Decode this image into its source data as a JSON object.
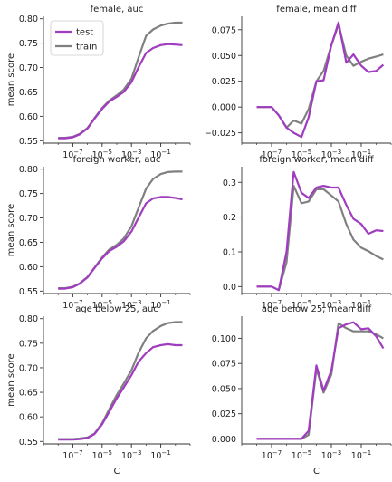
{
  "figure": {
    "xlabel": "C",
    "ylabel": "mean score",
    "x_ticks": [
      {
        "base": "10",
        "exp": "−7",
        "value": 1e-07
      },
      {
        "base": "10",
        "exp": "−5",
        "value": 1e-05
      },
      {
        "base": "10",
        "exp": "−3",
        "value": 0.001
      },
      {
        "base": "10",
        "exp": "−1",
        "value": 0.1
      }
    ],
    "x_scale": "log",
    "xlim": [
      1e-09,
      10
    ],
    "legend": {
      "placement": "top-left of first panel",
      "entries": [
        "test",
        "train"
      ]
    },
    "colors": {
      "test": "#a03cbf",
      "train": "#808080",
      "axis": "#333333"
    }
  },
  "chart_data": [
    {
      "type": "line",
      "title": "female, auc",
      "ylabel": "mean score",
      "xlabel": "",
      "ylim": [
        0.545,
        0.805
      ],
      "yticks": [
        0.55,
        0.6,
        0.65,
        0.7,
        0.75,
        0.8
      ],
      "ytick_labels": [
        "0.55",
        "0.60",
        "0.65",
        "0.70",
        "0.75",
        "0.80"
      ],
      "x": [
        1e-08,
        3e-08,
        1e-07,
        3e-07,
        1e-06,
        3e-06,
        1e-05,
        3e-05,
        0.0001,
        0.0003,
        0.001,
        0.003,
        0.01,
        0.03,
        0.1,
        0.3,
        1,
        3
      ],
      "series": [
        {
          "name": "test",
          "values": [
            0.555,
            0.555,
            0.557,
            0.563,
            0.575,
            0.595,
            0.615,
            0.63,
            0.64,
            0.65,
            0.67,
            0.7,
            0.73,
            0.74,
            0.746,
            0.748,
            0.747,
            0.746
          ]
        },
        {
          "name": "train",
          "values": [
            0.556,
            0.556,
            0.558,
            0.564,
            0.576,
            0.596,
            0.617,
            0.632,
            0.643,
            0.655,
            0.677,
            0.72,
            0.765,
            0.778,
            0.786,
            0.79,
            0.792,
            0.792
          ]
        }
      ]
    },
    {
      "type": "line",
      "title": "female, mean diff",
      "ylabel": "",
      "xlabel": "",
      "ylim": [
        -0.035,
        0.088
      ],
      "yticks": [
        -0.025,
        0.0,
        0.025,
        0.05,
        0.075
      ],
      "ytick_labels": [
        "−0.025",
        "0.000",
        "0.025",
        "0.050",
        "0.075"
      ],
      "x": [
        1e-08,
        3e-08,
        1e-07,
        3e-07,
        1e-06,
        3e-06,
        1e-05,
        3e-05,
        0.0001,
        0.0003,
        0.001,
        0.003,
        0.01,
        0.03,
        0.1,
        0.3,
        1,
        3
      ],
      "series": [
        {
          "name": "test",
          "values": [
            0.0,
            0.0,
            0.0,
            -0.008,
            -0.02,
            -0.025,
            -0.029,
            -0.01,
            0.025,
            0.026,
            0.06,
            0.082,
            0.043,
            0.051,
            0.04,
            0.034,
            0.035,
            0.041
          ]
        },
        {
          "name": "train",
          "values": [
            0.0,
            0.0,
            0.0,
            -0.008,
            -0.02,
            -0.013,
            -0.016,
            -0.002,
            0.025,
            0.035,
            0.06,
            0.08,
            0.05,
            0.04,
            0.044,
            0.047,
            0.049,
            0.051
          ]
        }
      ]
    },
    {
      "type": "line",
      "title": "foreign worker, auc",
      "ylabel": "mean score",
      "xlabel": "",
      "ylim": [
        0.545,
        0.805
      ],
      "yticks": [
        0.55,
        0.6,
        0.65,
        0.7,
        0.75,
        0.8
      ],
      "ytick_labels": [
        "0.55",
        "0.60",
        "0.65",
        "0.70",
        "0.75",
        "0.80"
      ],
      "x": [
        1e-08,
        3e-08,
        1e-07,
        3e-07,
        1e-06,
        3e-06,
        1e-05,
        3e-05,
        0.0001,
        0.0003,
        0.001,
        0.003,
        0.01,
        0.03,
        0.1,
        0.3,
        1,
        3
      ],
      "series": [
        {
          "name": "test",
          "values": [
            0.555,
            0.555,
            0.558,
            0.565,
            0.578,
            0.597,
            0.617,
            0.632,
            0.641,
            0.652,
            0.672,
            0.7,
            0.73,
            0.74,
            0.743,
            0.743,
            0.741,
            0.738
          ]
        },
        {
          "name": "train",
          "values": [
            0.556,
            0.556,
            0.559,
            0.566,
            0.579,
            0.598,
            0.619,
            0.635,
            0.645,
            0.658,
            0.683,
            0.72,
            0.76,
            0.78,
            0.79,
            0.794,
            0.795,
            0.795
          ]
        }
      ]
    },
    {
      "type": "line",
      "title": "foreign worker, mean diff",
      "ylabel": "",
      "xlabel": "",
      "ylim": [
        -0.02,
        0.345
      ],
      "yticks": [
        0.0,
        0.1,
        0.2,
        0.3
      ],
      "ytick_labels": [
        "0.0",
        "0.1",
        "0.2",
        "0.3"
      ],
      "x": [
        1e-08,
        3e-08,
        1e-07,
        3e-07,
        1e-06,
        3e-06,
        1e-05,
        3e-05,
        0.0001,
        0.0003,
        0.001,
        0.003,
        0.01,
        0.03,
        0.1,
        0.3,
        1,
        3
      ],
      "series": [
        {
          "name": "test",
          "values": [
            0.0,
            0.0,
            0.0,
            -0.01,
            0.1,
            0.33,
            0.27,
            0.255,
            0.285,
            0.29,
            0.285,
            0.285,
            0.235,
            0.195,
            0.18,
            0.152,
            0.162,
            0.16
          ]
        },
        {
          "name": "train",
          "values": [
            0.0,
            0.0,
            0.0,
            -0.01,
            0.07,
            0.29,
            0.24,
            0.245,
            0.28,
            0.28,
            0.262,
            0.245,
            0.18,
            0.135,
            0.112,
            0.102,
            0.088,
            0.078
          ]
        }
      ]
    },
    {
      "type": "line",
      "title": "age below 25, auc",
      "ylabel": "mean score",
      "xlabel": "C",
      "ylim": [
        0.545,
        0.805
      ],
      "yticks": [
        0.55,
        0.6,
        0.65,
        0.7,
        0.75,
        0.8
      ],
      "ytick_labels": [
        "0.55",
        "0.60",
        "0.65",
        "0.70",
        "0.75",
        "0.80"
      ],
      "x": [
        1e-08,
        3e-08,
        1e-07,
        3e-07,
        1e-06,
        3e-06,
        1e-05,
        3e-05,
        0.0001,
        0.0003,
        0.001,
        0.003,
        0.01,
        0.03,
        0.1,
        0.3,
        1,
        3
      ],
      "series": [
        {
          "name": "test",
          "values": [
            0.554,
            0.554,
            0.554,
            0.555,
            0.557,
            0.565,
            0.585,
            0.61,
            0.638,
            0.66,
            0.685,
            0.712,
            0.73,
            0.742,
            0.746,
            0.748,
            0.746,
            0.746
          ]
        },
        {
          "name": "train",
          "values": [
            0.555,
            0.555,
            0.555,
            0.556,
            0.558,
            0.566,
            0.587,
            0.615,
            0.645,
            0.668,
            0.695,
            0.73,
            0.76,
            0.775,
            0.785,
            0.791,
            0.793,
            0.793
          ]
        }
      ]
    },
    {
      "type": "line",
      "title": "age below 25, mean diff",
      "ylabel": "",
      "xlabel": "C",
      "ylim": [
        -0.005,
        0.122
      ],
      "yticks": [
        0.0,
        0.025,
        0.05,
        0.075,
        0.1
      ],
      "ytick_labels": [
        "0.000",
        "0.025",
        "0.050",
        "0.075",
        "0.100"
      ],
      "x": [
        1e-08,
        3e-08,
        1e-07,
        3e-07,
        1e-06,
        3e-06,
        1e-05,
        3e-05,
        0.0001,
        0.0003,
        0.001,
        0.003,
        0.01,
        0.03,
        0.1,
        0.3,
        1,
        3
      ],
      "series": [
        {
          "name": "test",
          "values": [
            0.0,
            0.0,
            0.0,
            0.0,
            0.0,
            0.0,
            0.0,
            0.008,
            0.073,
            0.048,
            0.068,
            0.11,
            0.114,
            0.116,
            0.109,
            0.11,
            0.102,
            0.09
          ]
        },
        {
          "name": "train",
          "values": [
            0.0,
            0.0,
            0.0,
            0.0,
            0.0,
            0.0,
            0.0,
            0.004,
            0.07,
            0.046,
            0.064,
            0.115,
            0.11,
            0.107,
            0.107,
            0.107,
            0.104,
            0.1
          ]
        }
      ]
    }
  ]
}
